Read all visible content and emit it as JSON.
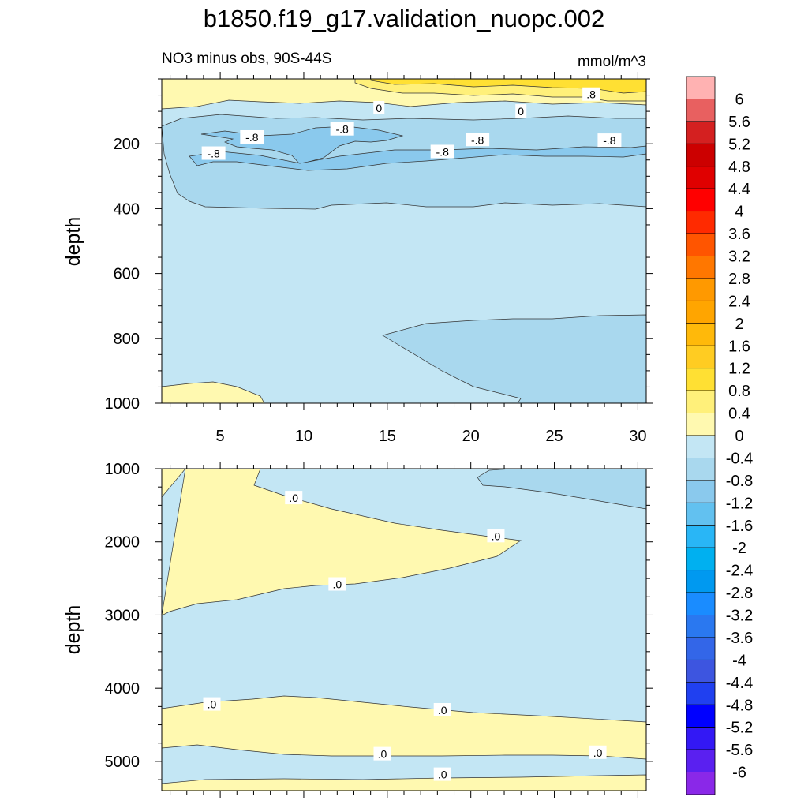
{
  "title": "b1850.f19_g17.validation_nuopc.002",
  "subtitle_left": "NO3 minus obs, 90S-44S",
  "subtitle_right": "mmol/m^3",
  "chart_data": [
    {
      "type": "contour",
      "name": "upper",
      "ylabel": "depth",
      "xlim": [
        1.5,
        30.5
      ],
      "ylim": [
        1000,
        0
      ],
      "xticks": [
        5,
        10,
        15,
        20,
        25,
        30
      ],
      "yticks": [
        200,
        400,
        600,
        800,
        1000
      ],
      "contour_labels": [
        {
          "text": ".8",
          "x": 27.2,
          "y": 48
        },
        {
          "text": "0",
          "x": 14.5,
          "y": 90
        },
        {
          "text": "0",
          "x": 23.0,
          "y": 100
        },
        {
          "text": "-.8",
          "x": 6.9,
          "y": 180
        },
        {
          "text": "-.8",
          "x": 12.3,
          "y": 155
        },
        {
          "text": "-.8",
          "x": 20.4,
          "y": 188
        },
        {
          "text": "-.8",
          "x": 18.3,
          "y": 225
        },
        {
          "text": "-.8",
          "x": 4.6,
          "y": 230
        },
        {
          "text": "-.8",
          "x": 28.3,
          "y": 190
        }
      ]
    },
    {
      "type": "contour",
      "name": "lower",
      "ylabel": "depth",
      "xlim": [
        1.5,
        30.5
      ],
      "ylim": [
        5400,
        1000
      ],
      "yticks": [
        1000,
        2000,
        3000,
        4000,
        5000
      ],
      "contour_labels": [
        {
          "text": ".0",
          "x": 9.4,
          "y": 1400
        },
        {
          "text": ".0",
          "x": 21.5,
          "y": 1920
        },
        {
          "text": ".0",
          "x": 12.0,
          "y": 2580
        },
        {
          "text": ".0",
          "x": 4.5,
          "y": 4220
        },
        {
          "text": ".0",
          "x": 18.3,
          "y": 4300
        },
        {
          "text": ".0",
          "x": 14.7,
          "y": 4900
        },
        {
          "text": ".0",
          "x": 27.6,
          "y": 4880
        },
        {
          "text": ".0",
          "x": 18.3,
          "y": 5180
        }
      ]
    }
  ],
  "colorbar": {
    "levels": [
      "6",
      "5.6",
      "5.2",
      "4.8",
      "4.4",
      "4",
      "3.6",
      "3.2",
      "2.8",
      "2.4",
      "2",
      "1.6",
      "1.2",
      "0.8",
      "0.4",
      "0",
      "-0.4",
      "-0.8",
      "-1.2",
      "-1.6",
      "-2",
      "-2.4",
      "-2.8",
      "-3.2",
      "-3.6",
      "-4",
      "-4.4",
      "-4.8",
      "-5.2",
      "-5.6",
      "-6"
    ],
    "colors": [
      "#ffb2b2",
      "#e86060",
      "#d42020",
      "#cc0000",
      "#e00000",
      "#ff0000",
      "#ff2a00",
      "#ff5500",
      "#ff7700",
      "#ff9900",
      "#ffa500",
      "#ffb90a",
      "#ffcc22",
      "#ffe033",
      "#fff07a",
      "#fff9b0",
      "#c3e6f4",
      "#a9d8ee",
      "#8ac9ed",
      "#62c1f0",
      "#29b6f6",
      "#00b0f0",
      "#0099f0",
      "#1a8cff",
      "#2a78f0",
      "#3366e8",
      "#3d55e0",
      "#2040f0",
      "#0000ff",
      "#3318f5",
      "#5a20f0",
      "#8a28e8"
    ]
  }
}
